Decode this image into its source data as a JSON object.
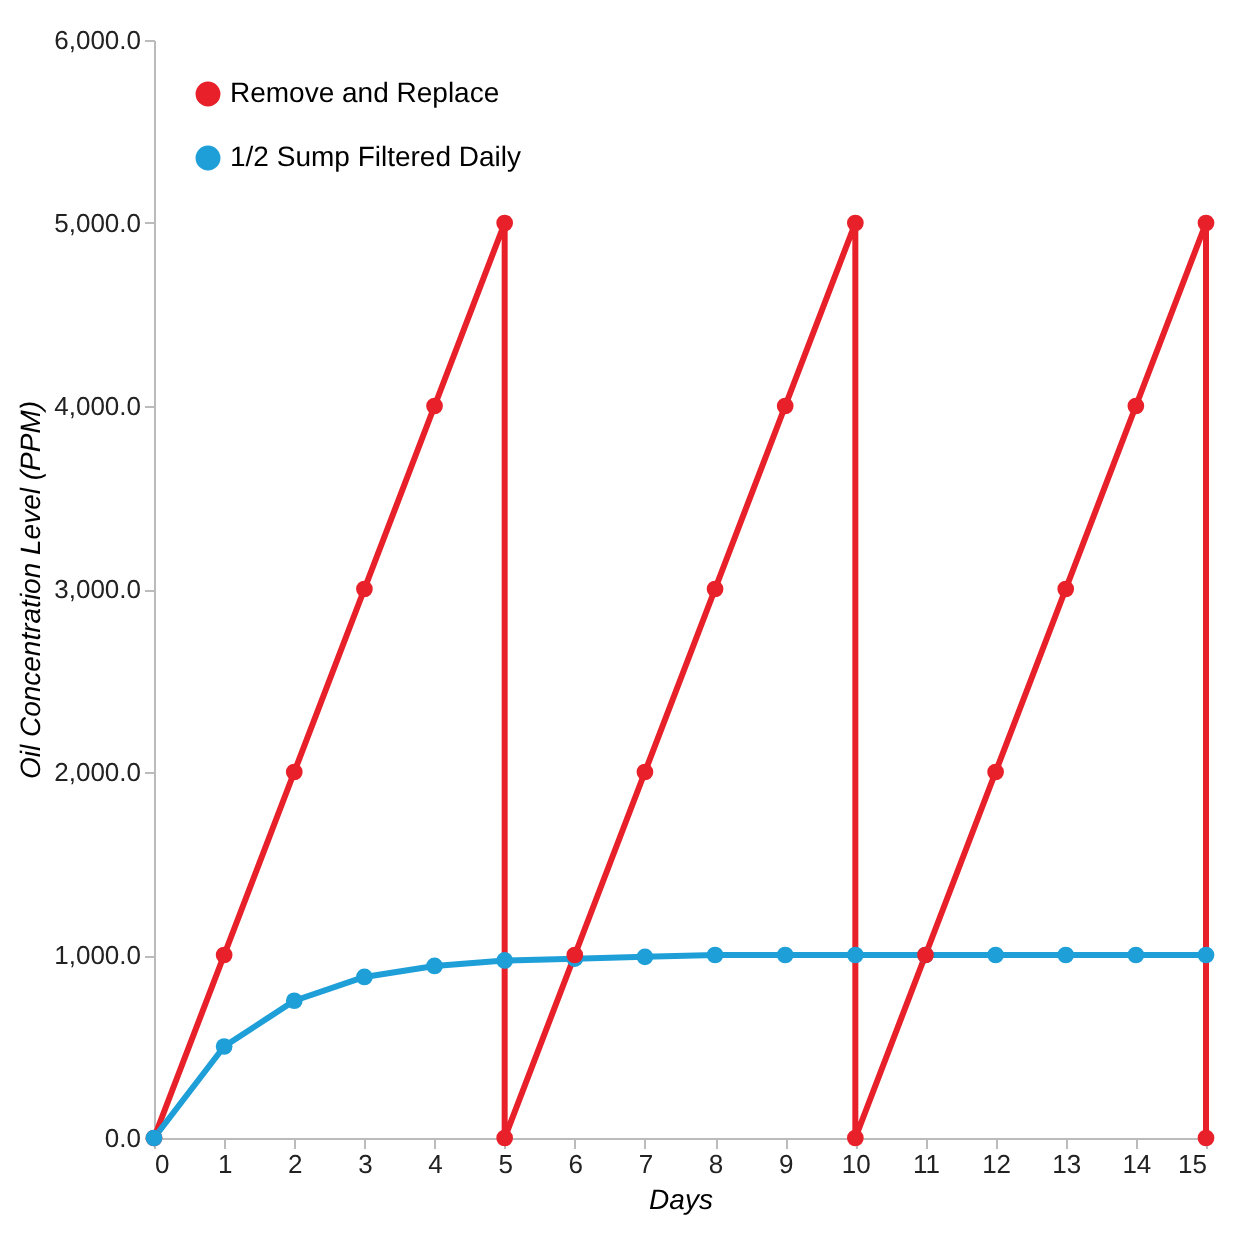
{
  "chart_data": {
    "type": "line",
    "xlabel": "Days",
    "ylabel": "Oil Concentration Level (PPM)",
    "xlim": [
      0,
      15
    ],
    "xticks": [
      0,
      1,
      2,
      3,
      4,
      5,
      6,
      7,
      8,
      9,
      10,
      11,
      12,
      13,
      14,
      15
    ],
    "ylim": [
      0,
      6000
    ],
    "yticks": [
      {
        "value": 0,
        "label": "0.0"
      },
      {
        "value": 1000,
        "label": "1,000.0"
      },
      {
        "value": 2000,
        "label": "2,000.0"
      },
      {
        "value": 3000,
        "label": "3,000.0"
      },
      {
        "value": 4000,
        "label": "4,000.0"
      },
      {
        "value": 5000,
        "label": "5,000.0"
      },
      {
        "value": 6000,
        "label": "6,000.0"
      }
    ],
    "series": [
      {
        "name": "Remove and Replace",
        "color": "#e8202a",
        "x": [
          0,
          1,
          2,
          3,
          4,
          5,
          5,
          6,
          7,
          8,
          9,
          10,
          10,
          11,
          12,
          13,
          14,
          15,
          15
        ],
        "values": [
          0,
          1000,
          2000,
          3000,
          4000,
          5000,
          0,
          1000,
          2000,
          3000,
          4000,
          5000,
          0,
          1000,
          2000,
          3000,
          4000,
          5000,
          0
        ]
      },
      {
        "name": "1/2 Sump Filtered Daily",
        "color": "#1e9fd8",
        "x": [
          0,
          1,
          2,
          3,
          4,
          5,
          6,
          7,
          8,
          9,
          10,
          11,
          12,
          13,
          14,
          15
        ],
        "values": [
          0,
          500,
          750,
          880,
          940,
          970,
          980,
          990,
          1000,
          1000,
          1000,
          1000,
          1000,
          1000,
          1000,
          1000
        ]
      }
    ],
    "grid": false,
    "legend": "top left",
    "marker": "circle",
    "line_style": "solid"
  }
}
